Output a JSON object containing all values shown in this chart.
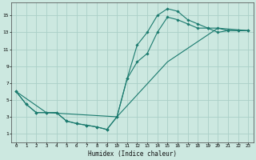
{
  "xlabel": "Humidex (Indice chaleur)",
  "bg_color": "#cce8e0",
  "grid_color": "#aad0c8",
  "line_color": "#1a7a6e",
  "xlim": [
    -0.5,
    23.5
  ],
  "ylim": [
    0,
    16.5
  ],
  "xticks": [
    0,
    1,
    2,
    3,
    4,
    5,
    6,
    7,
    8,
    9,
    10,
    11,
    12,
    13,
    14,
    15,
    16,
    17,
    18,
    19,
    20,
    21,
    22,
    23
  ],
  "yticks": [
    1,
    3,
    5,
    7,
    9,
    11,
    13,
    15
  ],
  "line1_x": [
    0,
    1,
    2,
    3,
    4,
    5,
    6,
    7,
    8,
    9,
    10,
    11,
    12,
    13,
    14,
    15,
    16,
    17,
    18,
    19,
    20,
    21,
    22,
    23
  ],
  "line1_y": [
    6,
    4.5,
    3.5,
    3.5,
    3.5,
    2.5,
    2.2,
    2.0,
    1.8,
    1.5,
    3.0,
    7.5,
    11.5,
    13.0,
    15.0,
    15.8,
    15.5,
    14.5,
    14.0,
    13.5,
    13.5,
    13.2,
    13.2,
    13.2
  ],
  "line2_x": [
    0,
    1,
    2,
    3,
    4,
    5,
    6,
    7,
    8,
    9,
    10,
    11,
    12,
    13,
    14,
    15,
    16,
    17,
    18,
    19,
    20,
    21,
    22,
    23
  ],
  "line2_y": [
    6,
    4.5,
    3.5,
    3.5,
    3.5,
    2.5,
    2.2,
    2.0,
    1.8,
    1.5,
    3.0,
    7.5,
    9.5,
    10.5,
    13.0,
    14.8,
    14.5,
    14.0,
    13.5,
    13.5,
    13.0,
    13.2,
    13.2,
    13.2
  ],
  "line3_x": [
    0,
    3,
    10,
    15,
    20,
    23
  ],
  "line3_y": [
    6,
    3.5,
    3.0,
    9.5,
    13.5,
    13.2
  ]
}
